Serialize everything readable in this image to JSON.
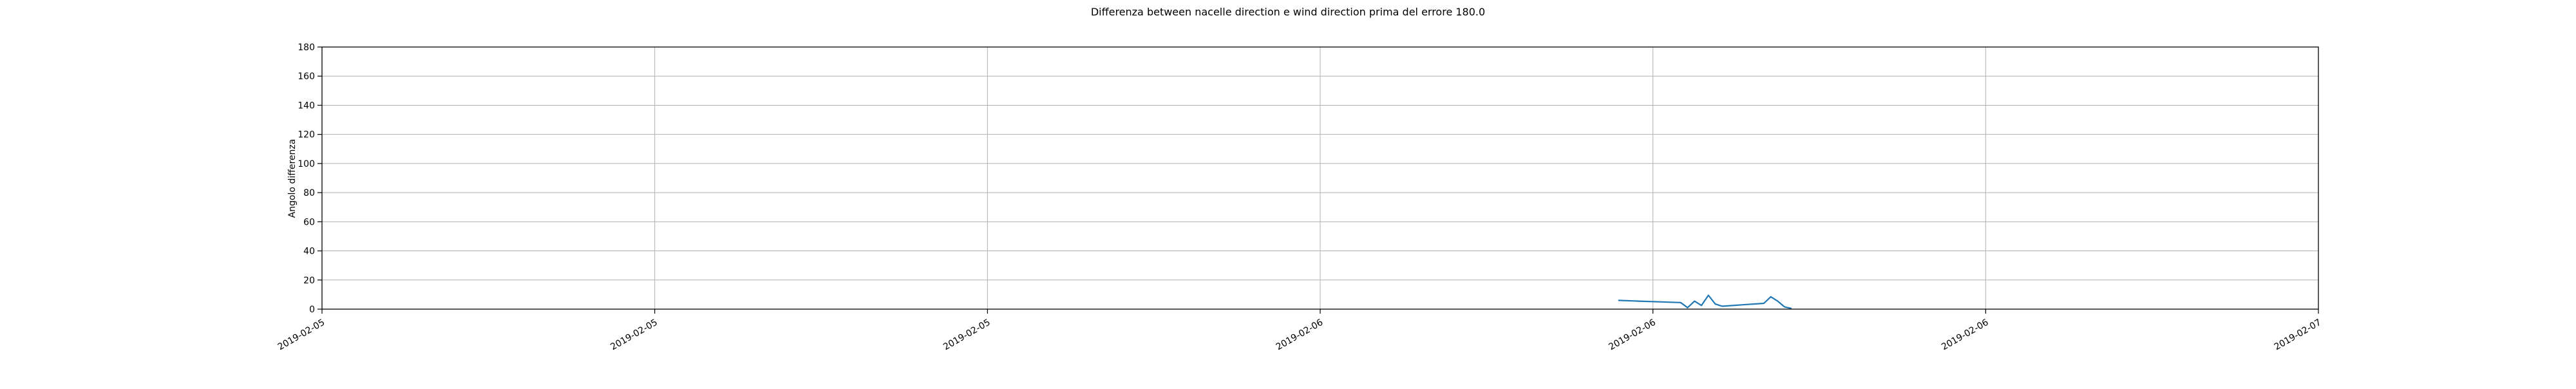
{
  "chart_data": {
    "type": "line",
    "title": "Differenza between nacelle direction e wind direction prima del errore 180.0",
    "xlabel": "",
    "ylabel": "Angolo differenza",
    "ylim": [
      0,
      180
    ],
    "yticks": [
      0,
      20,
      40,
      60,
      80,
      100,
      120,
      140,
      160,
      180
    ],
    "xlim": [
      "2019-02-05 00:00",
      "2019-02-07 00:00"
    ],
    "xticks": [
      {
        "t": "2019-02-05 00:00",
        "label": "2019-02-05"
      },
      {
        "t": "2019-02-05 08:00",
        "label": "2019-02-05"
      },
      {
        "t": "2019-02-05 16:00",
        "label": "2019-02-05"
      },
      {
        "t": "2019-02-06 00:00",
        "label": "2019-02-06"
      },
      {
        "t": "2019-02-06 08:00",
        "label": "2019-02-06"
      },
      {
        "t": "2019-02-06 16:00",
        "label": "2019-02-06"
      },
      {
        "t": "2019-02-07 00:00",
        "label": "2019-02-07"
      }
    ],
    "grid": true,
    "series": [
      {
        "color": "#1f77b4",
        "points": [
          {
            "x": "2019-02-06 07:10",
            "y": 6.0
          },
          {
            "x": "2019-02-06 07:40",
            "y": 5.5
          },
          {
            "x": "2019-02-06 08:10",
            "y": 5.0
          },
          {
            "x": "2019-02-06 08:40",
            "y": 4.5
          },
          {
            "x": "2019-02-06 08:50",
            "y": 1.0
          },
          {
            "x": "2019-02-06 09:00",
            "y": 5.5
          },
          {
            "x": "2019-02-06 09:10",
            "y": 2.5
          },
          {
            "x": "2019-02-06 09:20",
            "y": 9.5
          },
          {
            "x": "2019-02-06 09:30",
            "y": 3.5
          },
          {
            "x": "2019-02-06 09:40",
            "y": 2.0
          },
          {
            "x": "2019-02-06 10:10",
            "y": 3.0
          },
          {
            "x": "2019-02-06 10:40",
            "y": 4.0
          },
          {
            "x": "2019-02-06 10:50",
            "y": 8.5
          },
          {
            "x": "2019-02-06 11:00",
            "y": 5.5
          },
          {
            "x": "2019-02-06 11:10",
            "y": 1.5
          },
          {
            "x": "2019-02-06 11:20",
            "y": 0.5
          }
        ]
      }
    ]
  }
}
